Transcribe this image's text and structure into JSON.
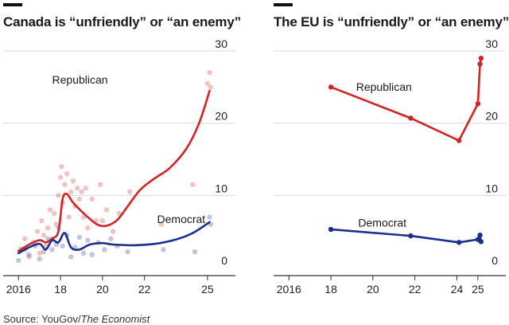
{
  "colors": {
    "republican": "#d32425",
    "democrat": "#1b2f8f",
    "grid": "#d8d8d8",
    "axis": "#333333"
  },
  "source": {
    "prefix": "Source: YouGov/",
    "publication": "The Economist"
  },
  "chart_data": [
    {
      "type": "line",
      "title": "Canada is “unfriendly” or “an enemy”",
      "xlabel": "",
      "ylabel": "",
      "xlim": [
        2015.8,
        2025.8
      ],
      "ylim": [
        0,
        30
      ],
      "x_ticks": [
        2016,
        2018,
        2020,
        2022,
        2025
      ],
      "x_tick_labels": [
        "2016",
        "18",
        "20",
        "22",
        "25"
      ],
      "y_ticks": [
        0,
        10,
        20,
        30
      ],
      "y_tick_labels": [
        "0",
        "10",
        "20",
        "30"
      ],
      "grid": "horizontal",
      "series": [
        {
          "name": "Republican",
          "label": "Republican",
          "color": "republican",
          "label_at": [
            2017.6,
            25.5
          ],
          "x": [
            2016,
            2016.5,
            2017,
            2017.3,
            2017.6,
            2017.9,
            2018.1,
            2018.3,
            2018.6,
            2019,
            2019.5,
            2019.8,
            2020.2,
            2020.7,
            2021.2,
            2021.8,
            2022.5,
            2023.2,
            2024,
            2024.6,
            2025.1
          ],
          "values": [
            2.3,
            3.2,
            3.8,
            3.5,
            4.0,
            5.0,
            9.5,
            10.2,
            9.0,
            7.8,
            6.5,
            5.9,
            5.8,
            6.6,
            8.5,
            10.8,
            12.4,
            13.8,
            16.5,
            20.0,
            24.5
          ],
          "points": [
            [
              2016.1,
              2.6
            ],
            [
              2016.3,
              4.0
            ],
            [
              2016.5,
              1.5
            ],
            [
              2016.7,
              3.5
            ],
            [
              2016.9,
              5.0
            ],
            [
              2017,
              2.0
            ],
            [
              2017.1,
              6.5
            ],
            [
              2017.2,
              4.5
            ],
            [
              2017.3,
              3.0
            ],
            [
              2017.4,
              5.5
            ],
            [
              2017.5,
              8.0
            ],
            [
              2017.6,
              4.0
            ],
            [
              2017.7,
              7.5
            ],
            [
              2017.8,
              6.0
            ],
            [
              2017.9,
              10.0
            ],
            [
              2018,
              12.5
            ],
            [
              2018.05,
              14.0
            ],
            [
              2018.1,
              9.0
            ],
            [
              2018.2,
              11.5
            ],
            [
              2018.3,
              13.0
            ],
            [
              2018.4,
              7.0
            ],
            [
              2018.5,
              10.5
            ],
            [
              2018.6,
              12.0
            ],
            [
              2018.7,
              8.5
            ],
            [
              2018.8,
              11.0
            ],
            [
              2018.9,
              9.5
            ],
            [
              2019,
              10.5
            ],
            [
              2019.1,
              7.0
            ],
            [
              2019.2,
              11.0
            ],
            [
              2019.3,
              5.5
            ],
            [
              2019.5,
              9.5
            ],
            [
              2019.7,
              6.5
            ],
            [
              2019.9,
              11.5
            ],
            [
              2020,
              6.5
            ],
            [
              2020.2,
              8.0
            ],
            [
              2020.5,
              5.0
            ],
            [
              2020.8,
              7.5
            ],
            [
              2021.3,
              10.5
            ],
            [
              2022.8,
              6.0
            ],
            [
              2024.3,
              11.5
            ],
            [
              2025,
              25.5
            ],
            [
              2025.1,
              27.0
            ],
            [
              2025.15,
              25.0
            ]
          ]
        },
        {
          "name": "Democrat",
          "label": "Democrat",
          "color": "democrat",
          "label_at": [
            2022.6,
            6.2
          ],
          "x": [
            2016,
            2016.5,
            2017,
            2017.3,
            2017.6,
            2017.9,
            2018.2,
            2018.5,
            2018.9,
            2019.4,
            2020,
            2020.5,
            2021.5,
            2022.5,
            2023.5,
            2024.3,
            2025.1
          ],
          "values": [
            2.0,
            2.8,
            3.3,
            2.5,
            3.8,
            3.5,
            4.8,
            2.8,
            2.5,
            3.2,
            3.4,
            3.2,
            3.1,
            3.3,
            3.9,
            4.8,
            6.3
          ],
          "points": [
            [
              2016,
              1.0
            ],
            [
              2016.3,
              2.5
            ],
            [
              2016.5,
              1.8
            ],
            [
              2016.8,
              3.0
            ],
            [
              2017,
              1.2
            ],
            [
              2017.2,
              2.2
            ],
            [
              2017.4,
              4.0
            ],
            [
              2017.6,
              2.5
            ],
            [
              2017.8,
              3.2
            ],
            [
              2017.9,
              5.5
            ],
            [
              2018.1,
              3.0
            ],
            [
              2018.3,
              4.5
            ],
            [
              2018.5,
              1.5
            ],
            [
              2018.7,
              2.8
            ],
            [
              2018.9,
              4.2
            ],
            [
              2019.1,
              2.0
            ],
            [
              2019.3,
              3.8
            ],
            [
              2019.5,
              1.8
            ],
            [
              2019.8,
              3.5
            ],
            [
              2020.1,
              2.5
            ],
            [
              2020.4,
              4.0
            ],
            [
              2020.7,
              3.0
            ],
            [
              2021.2,
              2.2
            ],
            [
              2022.9,
              2.5
            ],
            [
              2024.4,
              2.2
            ],
            [
              2025.1,
              7.0
            ],
            [
              2025.15,
              6.0
            ]
          ]
        }
      ]
    },
    {
      "type": "line",
      "title": "The EU is “unfriendly” or “an enemy”",
      "xlabel": "",
      "ylabel": "",
      "xlim": [
        2015.8,
        2025.8
      ],
      "ylim": [
        0,
        30
      ],
      "x_ticks": [
        2016,
        2018,
        2020,
        2022,
        2024,
        2025
      ],
      "x_tick_labels": [
        "2016",
        "18",
        "20",
        "22",
        "24",
        "25"
      ],
      "y_ticks": [
        0,
        10,
        20,
        30
      ],
      "y_tick_labels": [
        "0",
        "10",
        "20",
        "30"
      ],
      "grid": "horizontal",
      "series": [
        {
          "name": "Republican",
          "label": "Republican",
          "color": "republican",
          "label_at": [
            2019.2,
            24.5
          ],
          "x": [
            2018,
            2021.8,
            2024.1,
            2025.0,
            2025.1,
            2025.15
          ],
          "values": [
            25,
            20.7,
            17.6,
            22.7,
            28.2,
            29.0
          ]
        },
        {
          "name": "Democrat",
          "label": "Democrat",
          "color": "democrat",
          "label_at": [
            2019.3,
            5.7
          ],
          "x": [
            2018,
            2021.8,
            2024.1,
            2025.0,
            2025.1,
            2025.15
          ],
          "values": [
            5.3,
            4.4,
            3.5,
            3.9,
            4.5,
            3.6
          ]
        }
      ]
    }
  ]
}
